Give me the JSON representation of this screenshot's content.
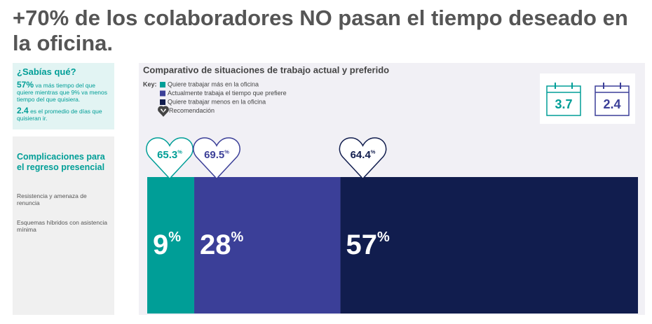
{
  "header": {
    "title": "+70% de los colaboradores NO pasan el tiempo deseado en la oficina."
  },
  "sabias": {
    "title": "¿Sabías qué?",
    "facts": [
      {
        "highlight": "57%",
        "text": "va más tiempo del que quiere mientras que 9% va menos tiempo del que quisiera."
      },
      {
        "highlight": "2.4",
        "text": "es el promedio de días que quisieran ir."
      }
    ]
  },
  "complications": {
    "title": "Complicaciones para el regreso presencial",
    "items": [
      "Resistencia y amenaza de renuncia",
      "Esquemas híbridos con asistencia mínima"
    ]
  },
  "chart_data": {
    "type": "bar",
    "stacked": true,
    "orientation": "horizontal",
    "title": "Comparativo de situaciones de trabajo actual y preferido",
    "key_label": "Key:",
    "recommendation_name": "Recomendación",
    "xlim": [
      0,
      94
    ],
    "series": [
      {
        "name": "Quiere trabajar más en la oficina",
        "color": "#009e97",
        "values": [
          9
        ],
        "value_labels": [
          "9%"
        ],
        "recommendation": 65.3,
        "recommendation_label": "65.3%"
      },
      {
        "name": "Actualmente trabaja el tiempo que prefiere",
        "color": "#3b3f98",
        "values": [
          28
        ],
        "value_labels": [
          "28%"
        ],
        "recommendation": 69.5,
        "recommendation_label": "69.5%"
      },
      {
        "name": "Quiere trabajar menos en la oficina",
        "color": "#111d4e",
        "values": [
          57
        ],
        "value_labels": [
          "57%"
        ],
        "recommendation": 64.4,
        "recommendation_label": "64.4%"
      }
    ],
    "calendars": [
      {
        "value": 3.7,
        "color": "#009e97"
      },
      {
        "value": 2.4,
        "color": "#3b3f98"
      }
    ]
  }
}
